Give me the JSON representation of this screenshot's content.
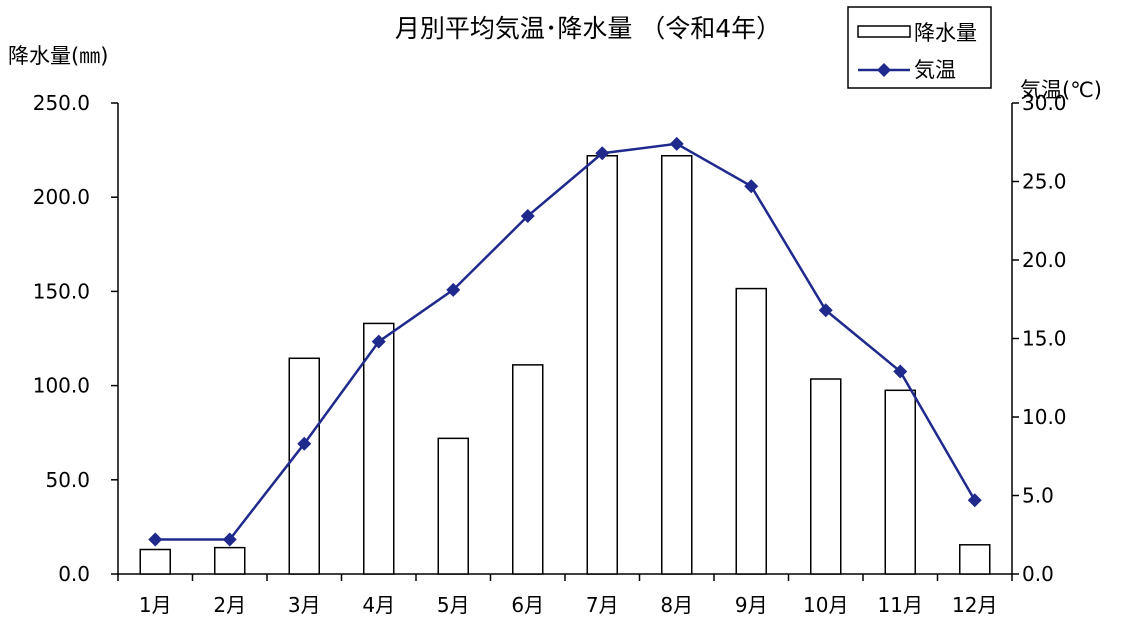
{
  "chart_data": {
    "type": "bar",
    "title": "月別平均気温･降水量 （令和4年）",
    "categories": [
      "1月",
      "2月",
      "3月",
      "4月",
      "5月",
      "6月",
      "7月",
      "8月",
      "9月",
      "10月",
      "11月",
      "12月"
    ],
    "y_left": {
      "label": "降水量(㎜)",
      "range": [
        0,
        250
      ],
      "ticks": [
        "0.0",
        "50.0",
        "100.0",
        "150.0",
        "200.0",
        "250.0"
      ]
    },
    "y_right": {
      "label": "気温(℃)",
      "range": [
        0,
        30
      ],
      "ticks": [
        "0.0",
        "5.0",
        "10.0",
        "15.0",
        "20.0",
        "25.0",
        "30.0"
      ]
    },
    "series": [
      {
        "name": "降水量",
        "type": "bar",
        "axis": "left",
        "values": [
          13.0,
          14.0,
          114.5,
          133.0,
          72.0,
          111.0,
          222.0,
          222.0,
          151.5,
          103.5,
          97.5,
          15.5
        ]
      },
      {
        "name": "気温",
        "type": "line",
        "axis": "right",
        "color": "#1f2a8c",
        "values": [
          2.2,
          2.2,
          8.3,
          14.8,
          18.1,
          22.8,
          26.8,
          27.4,
          24.7,
          16.8,
          12.9,
          4.7
        ]
      }
    ],
    "grid": false,
    "legend_position": "top-right"
  }
}
